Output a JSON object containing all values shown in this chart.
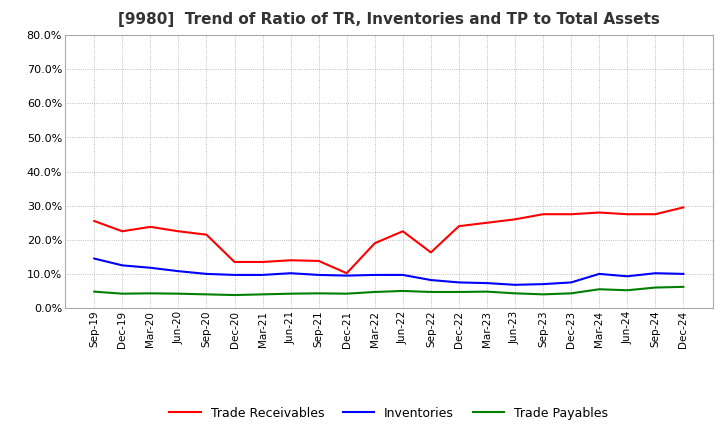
{
  "title": "[9980]  Trend of Ratio of TR, Inventories and TP to Total Assets",
  "ylim": [
    0,
    0.8
  ],
  "yticks": [
    0.0,
    0.1,
    0.2,
    0.3,
    0.4,
    0.5,
    0.6,
    0.7,
    0.8
  ],
  "x_labels": [
    "Sep-19",
    "Dec-19",
    "Mar-20",
    "Jun-20",
    "Sep-20",
    "Dec-20",
    "Mar-21",
    "Jun-21",
    "Sep-21",
    "Dec-21",
    "Mar-22",
    "Jun-22",
    "Sep-22",
    "Dec-22",
    "Mar-23",
    "Jun-23",
    "Sep-23",
    "Dec-23",
    "Mar-24",
    "Jun-24",
    "Sep-24",
    "Dec-24"
  ],
  "trade_receivables": [
    0.255,
    0.225,
    0.238,
    0.225,
    0.215,
    0.135,
    0.135,
    0.14,
    0.138,
    0.102,
    0.19,
    0.225,
    0.163,
    0.24,
    0.25,
    0.26,
    0.275,
    0.275,
    0.28,
    0.275,
    0.275,
    0.295
  ],
  "inventories": [
    0.145,
    0.125,
    0.118,
    0.108,
    0.1,
    0.097,
    0.097,
    0.102,
    0.097,
    0.095,
    0.097,
    0.097,
    0.082,
    0.075,
    0.073,
    0.068,
    0.07,
    0.075,
    0.1,
    0.093,
    0.102,
    0.1
  ],
  "trade_payables": [
    0.048,
    0.042,
    0.043,
    0.042,
    0.04,
    0.038,
    0.04,
    0.042,
    0.043,
    0.042,
    0.047,
    0.05,
    0.047,
    0.047,
    0.048,
    0.043,
    0.04,
    0.043,
    0.055,
    0.052,
    0.06,
    0.062
  ],
  "tr_color": "#ff0000",
  "inv_color": "#0000ff",
  "tp_color": "#008000",
  "background_color": "#ffffff",
  "grid_color": "#aaaaaa",
  "title_fontsize": 11,
  "legend_labels": [
    "Trade Receivables",
    "Inventories",
    "Trade Payables"
  ]
}
